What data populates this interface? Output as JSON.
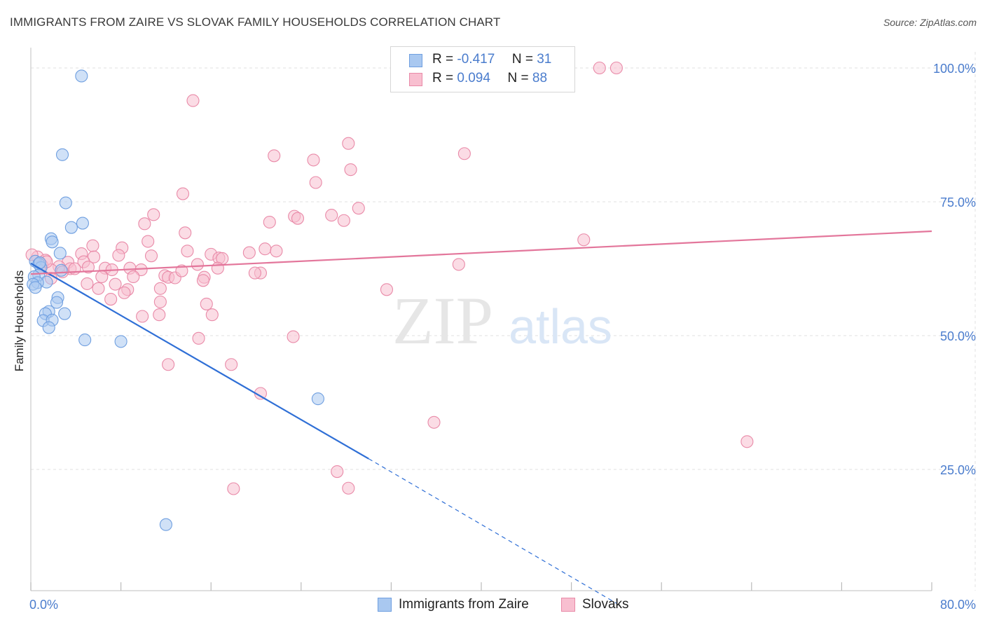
{
  "header": {
    "title": "IMMIGRANTS FROM ZAIRE VS SLOVAK FAMILY HOUSEHOLDS CORRELATION CHART",
    "source": "Source: ZipAtlas.com"
  },
  "legend": {
    "rows": [
      {
        "r_label": "R =",
        "r_value": "-0.417",
        "n_label": "N =",
        "n_value": "31",
        "color": "#a9c8f0",
        "border": "#6f9fe0"
      },
      {
        "r_label": "R =",
        "r_value": "0.094",
        "n_label": "N =",
        "n_value": "88",
        "color": "#f8bfd0",
        "border": "#e98aa8"
      }
    ]
  },
  "bottom_legend": [
    {
      "label": "Immigrants from Zaire",
      "color": "#a9c8f0",
      "border": "#6f9fe0"
    },
    {
      "label": "Slovaks",
      "color": "#f8bfd0",
      "border": "#e98aa8"
    }
  ],
  "watermark": {
    "zip": "ZIP",
    "atlas": "atlas"
  },
  "chart_data": {
    "type": "scatter",
    "title": "IMMIGRANTS FROM ZAIRE VS SLOVAK FAMILY HOUSEHOLDS CORRELATION CHART",
    "xlabel": "",
    "ylabel": "Family Households",
    "xlim": [
      0,
      80
    ],
    "ylim": [
      0,
      102
    ],
    "x_tick_labels": [
      "0.0%",
      "80.0%"
    ],
    "y_ticks": [
      25,
      50,
      75,
      100
    ],
    "y_tick_labels": [
      "25.0%",
      "50.0%",
      "75.0%",
      "100.0%"
    ],
    "grid": true,
    "legend_position": "top-center",
    "series": [
      {
        "name": "Immigrants from Zaire",
        "color": "#a9c8f0",
        "edge_color": "#6f9fe0",
        "line_color": "#2f6fd6",
        "trend": {
          "x0": 0,
          "y0": 63.5,
          "x1": 30,
          "y1": 27.0,
          "dash_to_x": 52,
          "dash_to_y": 0
        },
        "points": [
          [
            4.5,
            98.5
          ],
          [
            2.8,
            83.8
          ],
          [
            3.1,
            74.8
          ],
          [
            4.6,
            71.0
          ],
          [
            3.6,
            70.2
          ],
          [
            1.8,
            68.1
          ],
          [
            1.9,
            67.5
          ],
          [
            2.6,
            65.4
          ],
          [
            0.4,
            63.9
          ],
          [
            0.7,
            63.4
          ],
          [
            0.9,
            62.7
          ],
          [
            2.7,
            62.2
          ],
          [
            0.7,
            61.3
          ],
          [
            0.3,
            61.0
          ],
          [
            1.4,
            60.0
          ],
          [
            0.6,
            59.9
          ],
          [
            0.2,
            59.6
          ],
          [
            0.4,
            59.0
          ],
          [
            2.4,
            57.1
          ],
          [
            2.3,
            56.2
          ],
          [
            1.6,
            54.5
          ],
          [
            1.3,
            54.1
          ],
          [
            3.0,
            54.1
          ],
          [
            1.1,
            52.8
          ],
          [
            1.9,
            52.9
          ],
          [
            1.6,
            51.5
          ],
          [
            4.8,
            49.2
          ],
          [
            8.0,
            48.9
          ],
          [
            25.5,
            38.2
          ],
          [
            12.0,
            14.7
          ],
          [
            0.8,
            63.6
          ]
        ]
      },
      {
        "name": "Slovaks",
        "color": "#f8bfd0",
        "edge_color": "#e98aa8",
        "line_color": "#e3769b",
        "trend": {
          "x0": 0,
          "y0": 61.5,
          "x1": 80,
          "y1": 69.5
        },
        "points": [
          [
            50.5,
            100.0
          ],
          [
            52.0,
            100.0
          ],
          [
            14.4,
            93.9
          ],
          [
            28.2,
            85.9
          ],
          [
            38.5,
            84.0
          ],
          [
            21.6,
            83.6
          ],
          [
            25.1,
            82.8
          ],
          [
            28.4,
            81.0
          ],
          [
            25.3,
            78.6
          ],
          [
            13.5,
            76.5
          ],
          [
            29.1,
            73.8
          ],
          [
            10.9,
            72.6
          ],
          [
            23.4,
            72.3
          ],
          [
            23.7,
            71.9
          ],
          [
            26.7,
            72.5
          ],
          [
            27.8,
            71.5
          ],
          [
            21.2,
            71.2
          ],
          [
            10.1,
            70.9
          ],
          [
            13.7,
            69.2
          ],
          [
            49.1,
            67.9
          ],
          [
            10.4,
            67.6
          ],
          [
            5.5,
            66.8
          ],
          [
            8.1,
            66.4
          ],
          [
            20.8,
            66.2
          ],
          [
            13.9,
            65.8
          ],
          [
            21.8,
            65.8
          ],
          [
            19.4,
            65.5
          ],
          [
            4.5,
            65.3
          ],
          [
            16.0,
            65.2
          ],
          [
            7.8,
            65.0
          ],
          [
            10.7,
            64.9
          ],
          [
            5.6,
            64.7
          ],
          [
            16.7,
            64.5
          ],
          [
            17.0,
            64.4
          ],
          [
            0.6,
            64.7
          ],
          [
            1.3,
            64.1
          ],
          [
            3.3,
            63.7
          ],
          [
            4.7,
            63.8
          ],
          [
            1.0,
            63.1
          ],
          [
            14.8,
            63.3
          ],
          [
            38.0,
            63.3
          ],
          [
            2.5,
            62.9
          ],
          [
            5.1,
            62.8
          ],
          [
            6.6,
            62.6
          ],
          [
            8.8,
            62.6
          ],
          [
            16.6,
            62.6
          ],
          [
            1.8,
            62.3
          ],
          [
            3.5,
            62.5
          ],
          [
            9.8,
            62.3
          ],
          [
            7.2,
            62.3
          ],
          [
            2.8,
            61.9
          ],
          [
            11.9,
            61.2
          ],
          [
            20.4,
            61.7
          ],
          [
            19.9,
            61.7
          ],
          [
            6.3,
            61.0
          ],
          [
            9.1,
            61.0
          ],
          [
            12.2,
            60.9
          ],
          [
            12.8,
            60.8
          ],
          [
            15.4,
            60.9
          ],
          [
            15.3,
            60.3
          ],
          [
            1.8,
            60.7
          ],
          [
            5.0,
            59.7
          ],
          [
            7.5,
            59.6
          ],
          [
            6.0,
            58.8
          ],
          [
            11.5,
            58.8
          ],
          [
            8.6,
            58.6
          ],
          [
            8.3,
            58.0
          ],
          [
            31.6,
            58.6
          ],
          [
            7.1,
            56.8
          ],
          [
            11.5,
            56.3
          ],
          [
            15.6,
            55.9
          ],
          [
            11.4,
            53.9
          ],
          [
            16.1,
            53.9
          ],
          [
            9.9,
            53.6
          ],
          [
            23.3,
            49.8
          ],
          [
            14.9,
            49.5
          ],
          [
            12.2,
            44.6
          ],
          [
            17.8,
            44.6
          ],
          [
            20.4,
            39.2
          ],
          [
            35.8,
            33.8
          ],
          [
            63.6,
            30.2
          ],
          [
            27.2,
            24.6
          ],
          [
            28.2,
            21.5
          ],
          [
            18.0,
            21.4
          ],
          [
            0.1,
            65.1
          ],
          [
            1.4,
            63.8
          ],
          [
            3.9,
            62.5
          ],
          [
            13.4,
            62.1
          ]
        ]
      }
    ]
  }
}
